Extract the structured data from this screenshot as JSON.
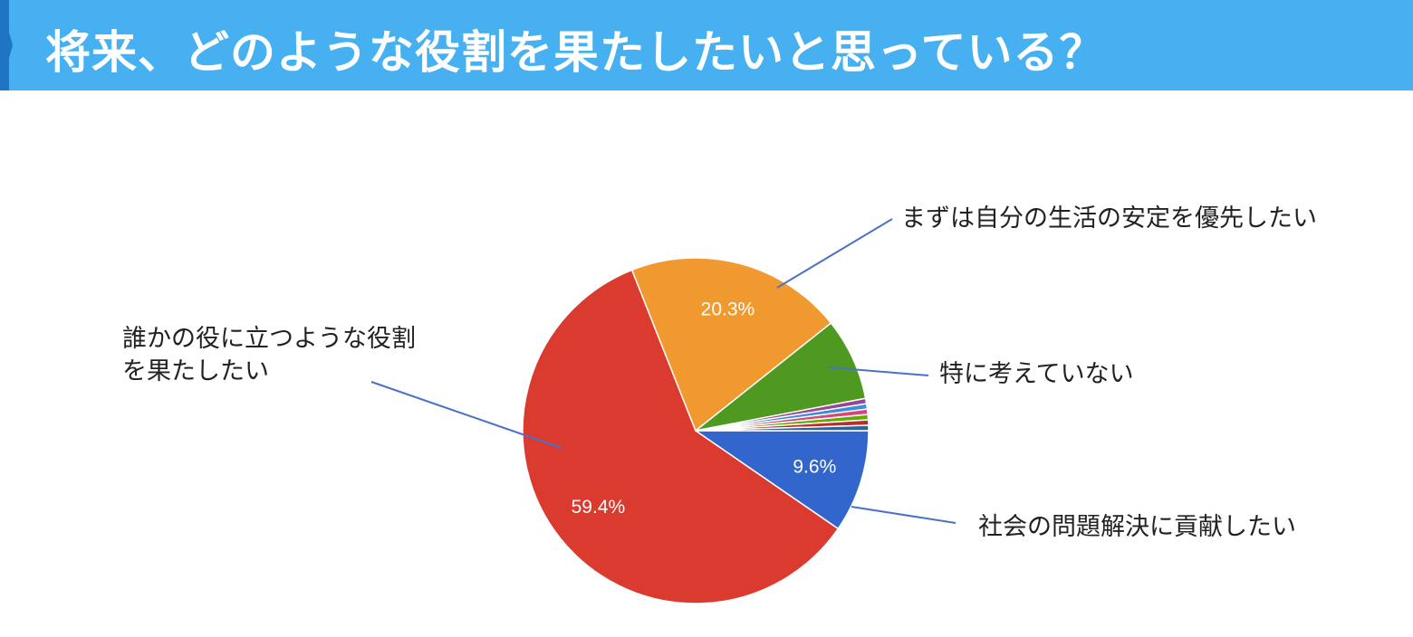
{
  "chart_data": {
    "type": "pie",
    "title": "将来、どのような役割を果たしたいと思っている？",
    "categories": [
      "社会の問題解決に貢献したい",
      "誰かの役に立つような役割を果たしたい",
      "まずは自分の生活の安定を優先したい",
      "特に考えていない",
      null,
      null,
      null,
      null,
      null,
      null
    ],
    "values": [
      9.6,
      59.4,
      20.3,
      7.7,
      0.5,
      0.5,
      0.5,
      0.5,
      0.5,
      0.5
    ],
    "value_labels": [
      "9.6%",
      "59.4%",
      "20.3%",
      null,
      null,
      null,
      null,
      null,
      null,
      null
    ],
    "colors": [
      "#3366cc",
      "#db3a2e",
      "#f0992f",
      "#4e9a20",
      "#994499",
      "#3b8fd9",
      "#dd4477",
      "#66aa00",
      "#b82e2e",
      "#316395"
    ]
  }
}
